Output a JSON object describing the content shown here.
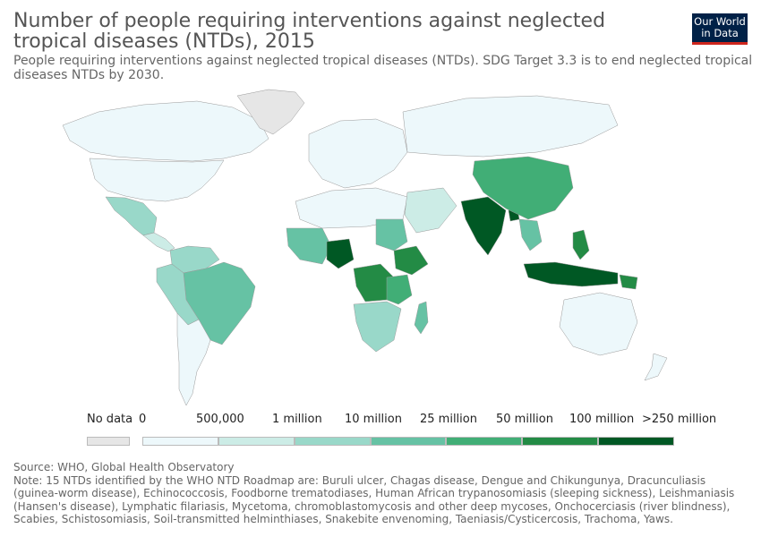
{
  "header": {
    "title": "Number of people requiring interventions against neglected tropical diseases (NTDs), 2015",
    "subtitle_lines": [
      "People requiring interventions against neglected tropical diseases (NTDs). SDG Target 3.3 is to end neglected tropical",
      "diseases NTDs by 2030."
    ],
    "logo_lines": [
      "Our World",
      "in Data"
    ]
  },
  "legend": {
    "no_data_label": "No data",
    "tick_labels": [
      "0",
      "500,000",
      "1 million",
      "10 million",
      "25 million",
      "50 million",
      "100 million",
      ">250 million"
    ],
    "no_data_color": "#e6e6e6",
    "bin_colors": [
      "#edf8fb",
      "#ccece6",
      "#99d8c9",
      "#66c2a4",
      "#41ae76",
      "#238b45",
      "#005824"
    ]
  },
  "map": {
    "country_values": [
      {
        "name": "India",
        "bin": 6
      },
      {
        "name": "Nigeria",
        "bin": 6
      },
      {
        "name": "Indonesia",
        "bin": 6
      },
      {
        "name": "Bangladesh",
        "bin": 6
      },
      {
        "name": "Democratic Republic of Congo",
        "bin": 5
      },
      {
        "name": "Ethiopia",
        "bin": 5
      },
      {
        "name": "Philippines",
        "bin": 5
      },
      {
        "name": "Papua New Guinea",
        "bin": 5
      },
      {
        "name": "China",
        "bin": 4
      },
      {
        "name": "Brazil",
        "bin": 3
      },
      {
        "name": "Tanzania",
        "bin": 4
      },
      {
        "name": "Madagascar",
        "bin": 3
      },
      {
        "name": "Sudan",
        "bin": 3
      },
      {
        "name": "Myanmar",
        "bin": 3
      },
      {
        "name": "Mexico",
        "bin": 2
      },
      {
        "name": "Argentina",
        "bin": 0
      },
      {
        "name": "Australia",
        "bin": 0
      },
      {
        "name": "Russia",
        "bin": 0
      },
      {
        "name": "Canada",
        "bin": 0
      },
      {
        "name": "United States",
        "bin": 0
      },
      {
        "name": "Greenland",
        "bin": -1
      }
    ]
  },
  "footer": {
    "lines": [
      "Source: WHO, Global Health Observatory",
      "Note: 15 NTDs identified by the WHO NTD Roadmap are: Buruli ulcer, Chagas disease, Dengue and Chikungunya, Dracunculiasis",
      "(guinea-worm disease), Echinococcosis, Foodborne trematodiases, Human African trypanosomiasis (sleeping sickness), Leishmaniasis",
      "(Hansen's disease), Lymphatic filariasis, Mycetoma, chromoblastomycosis and other deep mycoses, Onchocerciasis (river blindness),",
      "Scabies, Schistosomiasis, Soil-transmitted helminthiases, Snakebite envenoming, Taeniasis/Cysticercosis, Trachoma, Yaws."
    ]
  }
}
